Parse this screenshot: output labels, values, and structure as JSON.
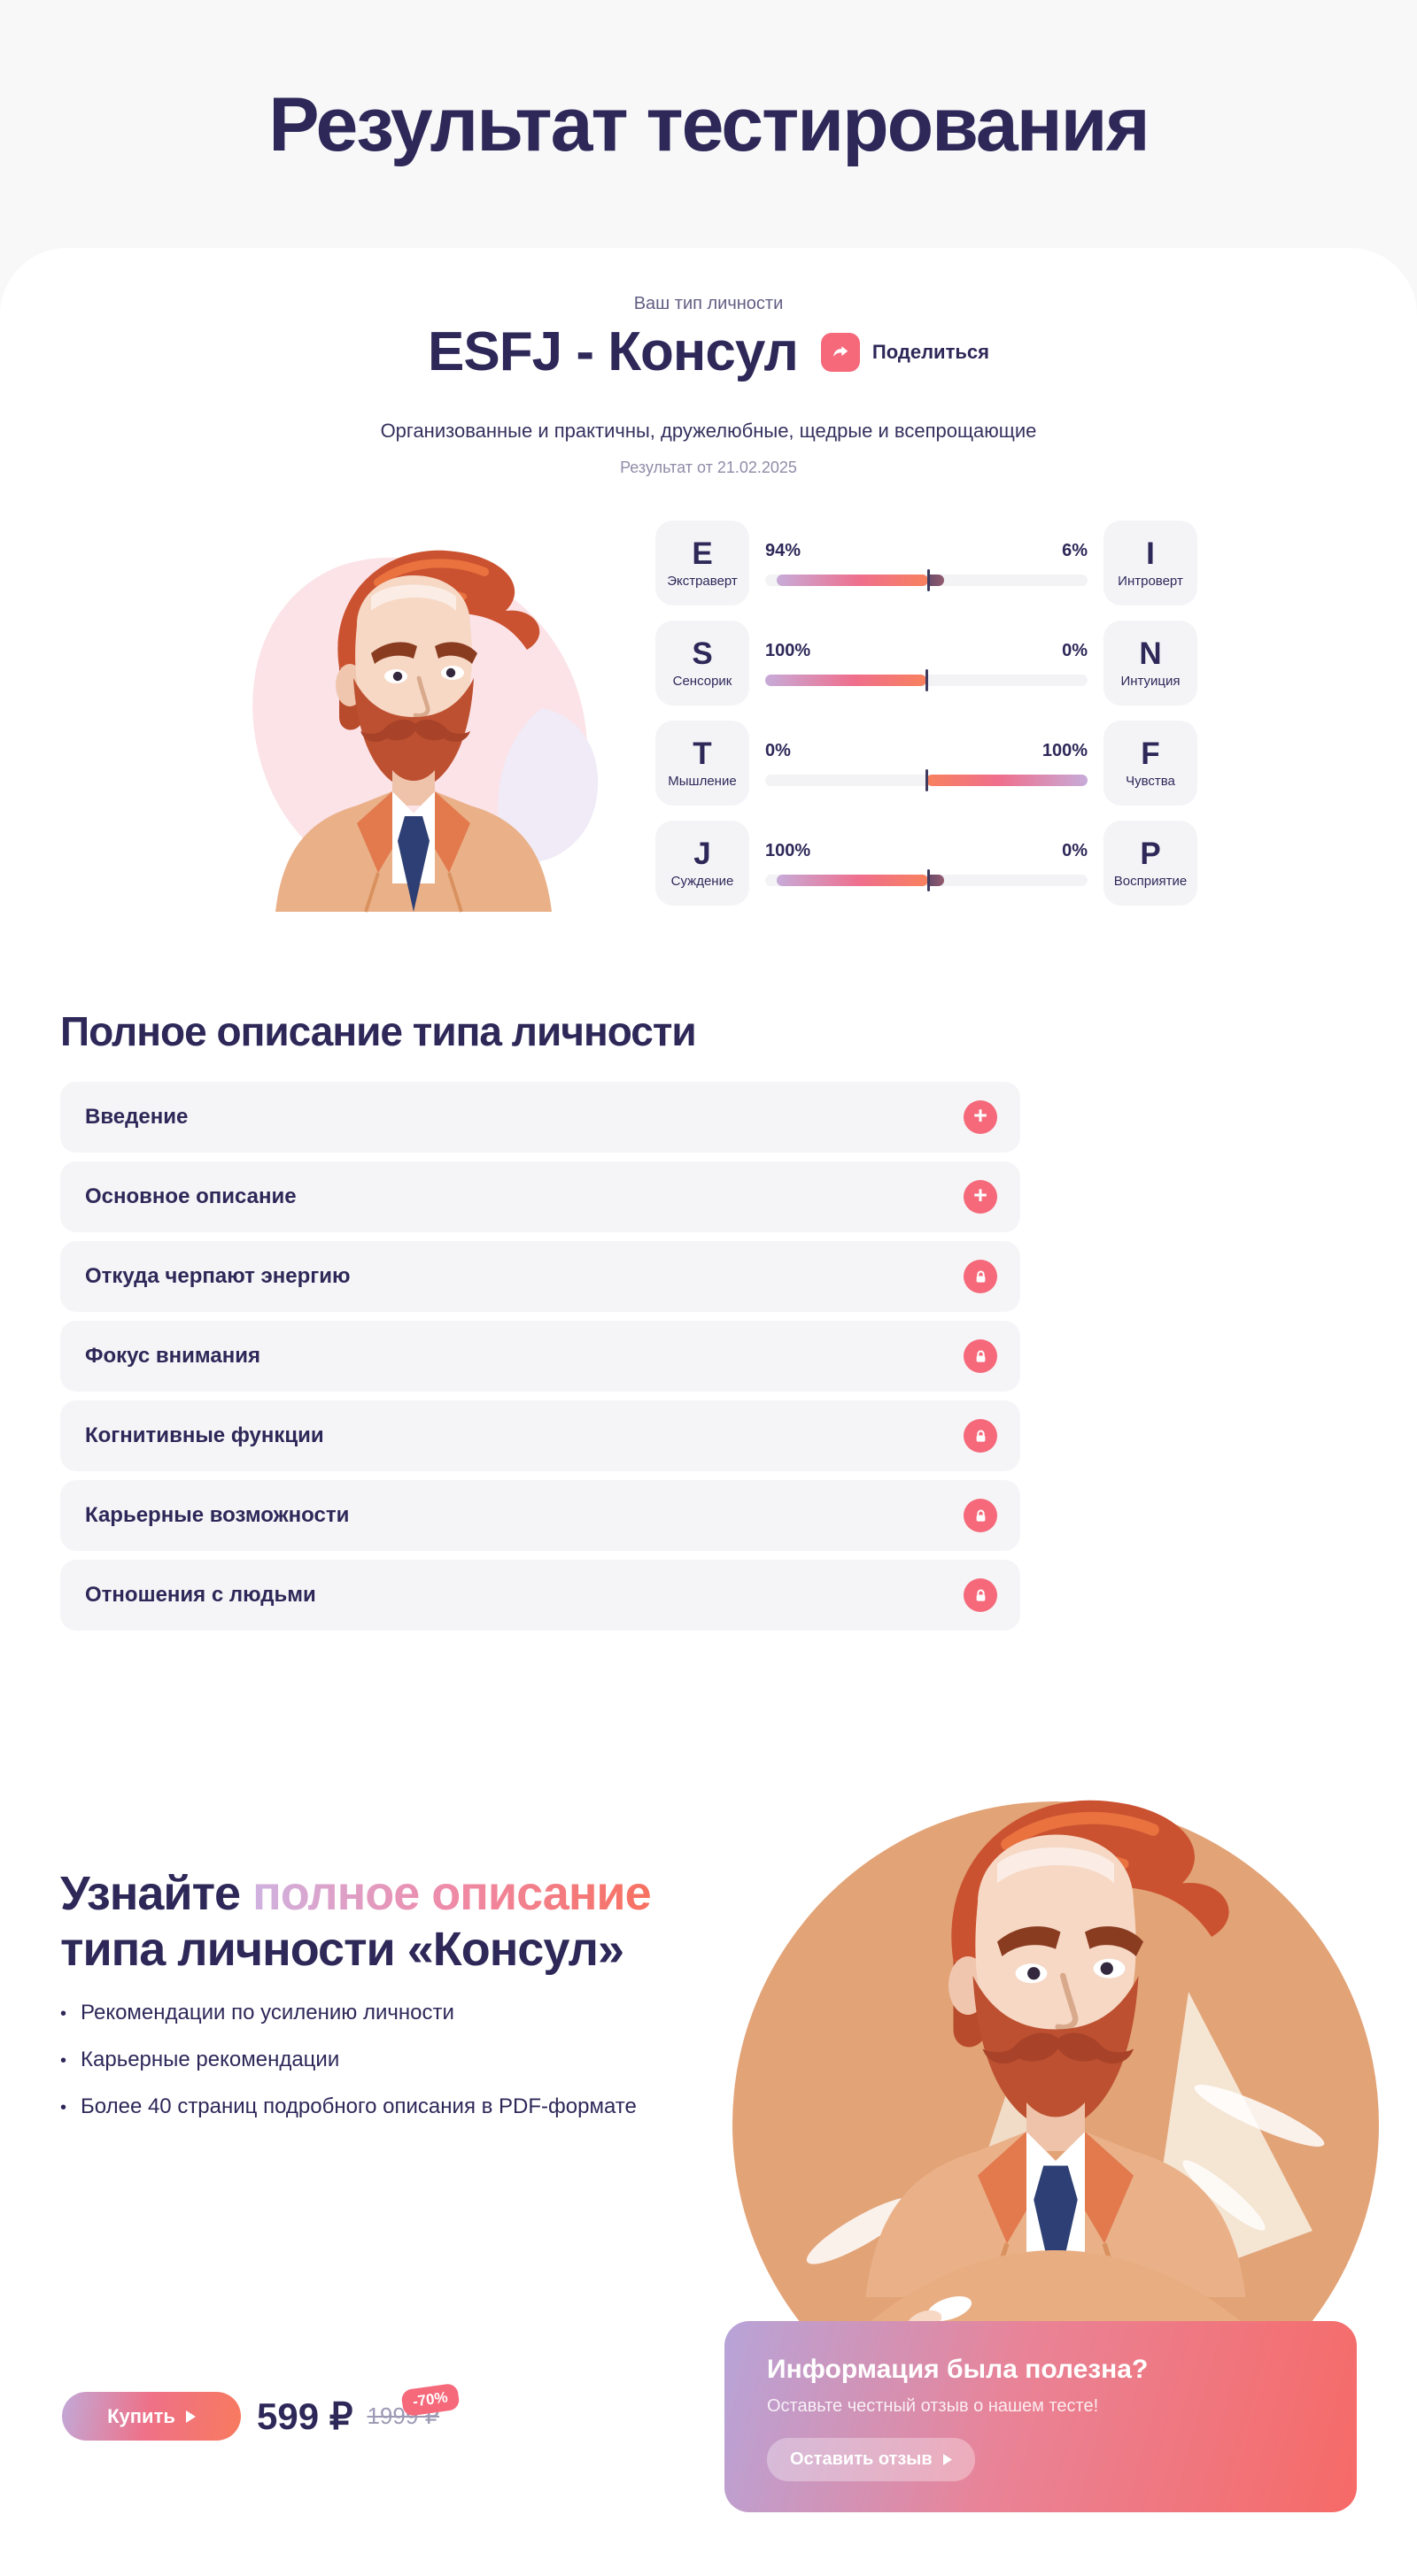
{
  "page": {
    "title": "Результат тестирования"
  },
  "result": {
    "eyebrow": "Ваш тип личности",
    "type_title": "ESFJ - Консул",
    "share_label": "Поделиться",
    "subtitle": "Организованные и практичны, дружелюбные, щедрые и всепрощающие",
    "date": "Результат от 21.02.2025"
  },
  "traits": [
    {
      "left_letter": "E",
      "left_label": "Экстраверт",
      "left_pct": "94%",
      "left_value": 94,
      "right_letter": "I",
      "right_label": "Интроверт",
      "right_pct": "6%",
      "right_value": 6,
      "bar": {
        "fill_start": 3.5,
        "fill_end": 50.5,
        "tick": 50.5,
        "cap_end": 55.5,
        "reverse": false
      }
    },
    {
      "left_letter": "S",
      "left_label": "Сенсорик",
      "left_pct": "100%",
      "left_value": 100,
      "right_letter": "N",
      "right_label": "Интуиция",
      "right_pct": "0%",
      "right_value": 0,
      "bar": {
        "fill_start": 0,
        "fill_end": 50,
        "tick": 50,
        "cap_end": 50,
        "reverse": false
      }
    },
    {
      "left_letter": "T",
      "left_label": "Мышление",
      "left_pct": "0%",
      "left_value": 0,
      "right_letter": "F",
      "right_label": "Чувства",
      "right_pct": "100%",
      "right_value": 100,
      "bar": {
        "fill_start": 50,
        "fill_end": 100,
        "tick": 50,
        "cap_end": 50,
        "reverse": true
      }
    },
    {
      "left_letter": "J",
      "left_label": "Суждение",
      "left_pct": "100%",
      "left_value": 100,
      "right_letter": "P",
      "right_label": "Восприятие",
      "right_pct": "0%",
      "right_value": 0,
      "bar": {
        "fill_start": 3.5,
        "fill_end": 50.5,
        "tick": 50.5,
        "cap_end": 55.5,
        "reverse": false
      }
    }
  ],
  "description": {
    "heading": "Полное описание типа личности",
    "items": [
      {
        "title": "Введение",
        "icon": "plus"
      },
      {
        "title": "Основное описание",
        "icon": "plus"
      },
      {
        "title": "Откуда черпают энергию",
        "icon": "lock"
      },
      {
        "title": "Фокус внимания",
        "icon": "lock"
      },
      {
        "title": "Когнитивные функции",
        "icon": "lock"
      },
      {
        "title": "Карьерные возможности",
        "icon": "lock"
      },
      {
        "title": "Отношения с людьми",
        "icon": "lock"
      }
    ]
  },
  "cta": {
    "heading_part1": "Узнайте",
    "heading_highlight": "полное описание",
    "heading_part2": "типа личности «Консул»",
    "bullets": [
      "Рекомендации по усилению личности",
      "Карьерные рекомендации",
      "Более 40 страниц подробного описания в PDF-формате"
    ],
    "buy_label": "Купить",
    "price": "599 ₽",
    "old_price": "1999 ₽",
    "discount": "-70%"
  },
  "feedback": {
    "heading": "Информация была полезна?",
    "subtext": "Оставьте честный отзыв о нашем тесте!",
    "button_label": "Оставить отзыв"
  },
  "icons": {
    "plus_glyph": "+",
    "bullet_glyph": "•"
  },
  "colors": {
    "bg": "#f8f8f9",
    "card": "#ffffff",
    "navy": "#2e2859",
    "navy-soft": "#34305e",
    "muted": "#8f8ca8",
    "eyebrow": "#615e83",
    "accent": "#f5697a",
    "track": "#f3f3f6",
    "chip": "#f4f4f7",
    "row": "#f5f5f7",
    "grad-lav": "#c7abd9",
    "grad-pink": "#ef6f8d",
    "grad-orange": "#f8815e",
    "old-price": "#9d9ab5"
  }
}
